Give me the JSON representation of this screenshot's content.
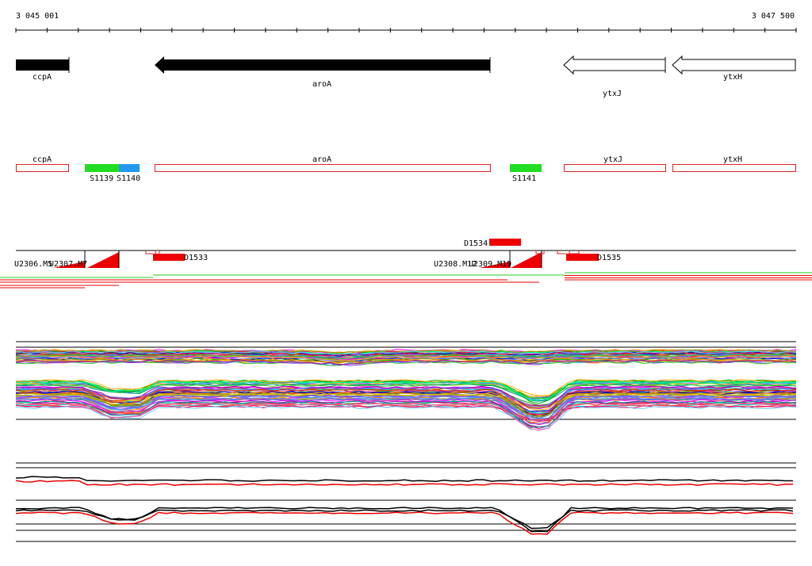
{
  "coordinates": {
    "start": "3 045 001",
    "end": "3 047 500"
  },
  "genes": [
    {
      "name": "ccpA",
      "strand": "+"
    },
    {
      "name": "aroA",
      "strand": "-"
    },
    {
      "name": "ytxJ",
      "strand": "-"
    },
    {
      "name": "ytxH",
      "strand": "-"
    }
  ],
  "features": [
    {
      "label": "ccpA",
      "kind": "gene"
    },
    {
      "label": "S1139",
      "kind": "segment",
      "color": "#22dd22"
    },
    {
      "label": "S1140",
      "kind": "segment",
      "color": "#2299ee"
    },
    {
      "label": "aroA",
      "kind": "gene"
    },
    {
      "label": "S1141",
      "kind": "segment",
      "color": "#22dd22"
    },
    {
      "label": "ytxJ",
      "kind": "gene"
    },
    {
      "label": "ytxH",
      "kind": "gene"
    }
  ],
  "regulatory": [
    {
      "label": "U2306.M5",
      "kind": "utr"
    },
    {
      "label": "U2307.M7",
      "kind": "utr"
    },
    {
      "label": "D1533",
      "kind": "downshift"
    },
    {
      "label": "D1534",
      "kind": "downshift"
    },
    {
      "label": "U2308.M12",
      "kind": "utr"
    },
    {
      "label": "U2309.M19",
      "kind": "utr"
    },
    {
      "label": "D1535",
      "kind": "downshift"
    }
  ],
  "colors": {
    "feature_outline": "#dd2222",
    "segment_green": "#22dd22",
    "segment_blue": "#2299ee",
    "regulatory_red": "#ee0000",
    "profile_red": "#ee0000"
  }
}
